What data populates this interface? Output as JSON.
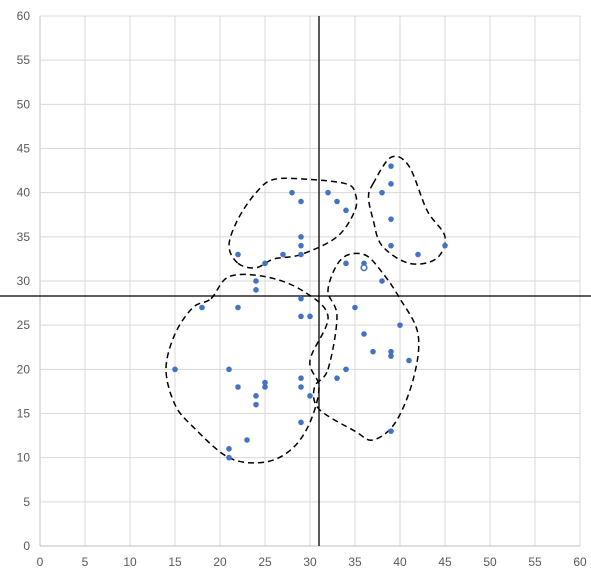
{
  "chart_data": {
    "type": "scatter",
    "title": "",
    "xlabel": "",
    "ylabel": "",
    "xlim": [
      0,
      60
    ],
    "ylim": [
      0,
      60
    ],
    "x_ticks": [
      "0",
      "5",
      "10",
      "15",
      "20",
      "25",
      "30",
      "35",
      "40",
      "45",
      "50",
      "55",
      "60"
    ],
    "y_ticks": [
      "0",
      "5",
      "10",
      "15",
      "20",
      "25",
      "30",
      "35",
      "40",
      "45",
      "50",
      "55",
      "60"
    ],
    "grid": true,
    "legend": "none",
    "marker_color": "#4472c4",
    "series": [
      {
        "points": [
          {
            "x": 15,
            "y": 20
          },
          {
            "x": 18,
            "y": 27
          },
          {
            "x": 21,
            "y": 20
          },
          {
            "x": 21,
            "y": 11
          },
          {
            "x": 21,
            "y": 10
          },
          {
            "x": 22,
            "y": 27
          },
          {
            "x": 22,
            "y": 18
          },
          {
            "x": 22,
            "y": 33
          },
          {
            "x": 23,
            "y": 12
          },
          {
            "x": 24,
            "y": 30
          },
          {
            "x": 24,
            "y": 29
          },
          {
            "x": 24,
            "y": 17
          },
          {
            "x": 24,
            "y": 16
          },
          {
            "x": 25,
            "y": 32
          },
          {
            "x": 25,
            "y": 18.5
          },
          {
            "x": 25,
            "y": 18
          },
          {
            "x": 27,
            "y": 33
          },
          {
            "x": 28,
            "y": 40
          },
          {
            "x": 29,
            "y": 39
          },
          {
            "x": 29,
            "y": 35
          },
          {
            "x": 29,
            "y": 34
          },
          {
            "x": 29,
            "y": 33
          },
          {
            "x": 29,
            "y": 28
          },
          {
            "x": 29,
            "y": 26
          },
          {
            "x": 29,
            "y": 19
          },
          {
            "x": 29,
            "y": 18
          },
          {
            "x": 29,
            "y": 14
          },
          {
            "x": 30,
            "y": 26
          },
          {
            "x": 30,
            "y": 17
          },
          {
            "x": 32,
            "y": 40
          },
          {
            "x": 33,
            "y": 39
          },
          {
            "x": 33,
            "y": 19
          },
          {
            "x": 34,
            "y": 38
          },
          {
            "x": 34,
            "y": 32
          },
          {
            "x": 34,
            "y": 20
          },
          {
            "x": 35,
            "y": 27
          },
          {
            "x": 36,
            "y": 32
          },
          {
            "x": 36,
            "y": 31.5,
            "open": true
          },
          {
            "x": 36,
            "y": 24
          },
          {
            "x": 37,
            "y": 22
          },
          {
            "x": 38,
            "y": 40
          },
          {
            "x": 38,
            "y": 30
          },
          {
            "x": 39,
            "y": 43
          },
          {
            "x": 39,
            "y": 41
          },
          {
            "x": 39,
            "y": 37
          },
          {
            "x": 39,
            "y": 34
          },
          {
            "x": 39,
            "y": 22
          },
          {
            "x": 39,
            "y": 21.5
          },
          {
            "x": 39,
            "y": 13
          },
          {
            "x": 40,
            "y": 25
          },
          {
            "x": 41,
            "y": 21
          },
          {
            "x": 42,
            "y": 33
          },
          {
            "x": 45,
            "y": 34
          }
        ]
      }
    ],
    "reference_lines": [
      {
        "orientation": "vertical",
        "value": 31,
        "color": "#000000"
      },
      {
        "orientation": "horizontal",
        "value": 28.3,
        "color": "#000000"
      }
    ],
    "cluster_outlines": [
      {
        "style": "dashed",
        "color": "#000000",
        "outline": [
          [
            19,
            28
          ],
          [
            21,
            30.5
          ],
          [
            25,
            30.5
          ],
          [
            29,
            29
          ],
          [
            32,
            26
          ],
          [
            30,
            21
          ],
          [
            31,
            18
          ],
          [
            30,
            14
          ],
          [
            28,
            11
          ],
          [
            25,
            9.5
          ],
          [
            21,
            10
          ],
          [
            17,
            13.5
          ],
          [
            15,
            16
          ],
          [
            14,
            20
          ],
          [
            15,
            24
          ],
          [
            17,
            27
          ]
        ]
      },
      {
        "style": "dashed",
        "color": "#000000",
        "outline": [
          [
            22,
            32
          ],
          [
            24,
            31.5
          ],
          [
            26,
            32.5
          ],
          [
            29,
            33
          ],
          [
            33,
            35
          ],
          [
            35,
            38
          ],
          [
            35,
            40
          ],
          [
            34,
            41
          ],
          [
            30,
            41.5
          ],
          [
            26,
            41.5
          ],
          [
            24,
            40
          ],
          [
            22,
            37
          ],
          [
            21,
            34
          ]
        ]
      },
      {
        "style": "dashed",
        "color": "#000000",
        "outline": [
          [
            32,
            20
          ],
          [
            33,
            26
          ],
          [
            32,
            29
          ],
          [
            33.5,
            32.5
          ],
          [
            36,
            33
          ],
          [
            38,
            31
          ],
          [
            40,
            28
          ],
          [
            42,
            24
          ],
          [
            41.5,
            19
          ],
          [
            39.5,
            14
          ],
          [
            37,
            12
          ],
          [
            35,
            13
          ],
          [
            31,
            15.5
          ],
          [
            30.5,
            18
          ]
        ]
      },
      {
        "style": "dashed",
        "color": "#000000",
        "outline": [
          [
            37,
            41
          ],
          [
            39,
            44
          ],
          [
            41,
            43
          ],
          [
            43,
            38
          ],
          [
            45,
            35
          ],
          [
            44,
            32.5
          ],
          [
            41,
            32
          ],
          [
            38,
            34
          ],
          [
            37,
            37
          ],
          [
            36.5,
            39.5
          ]
        ]
      }
    ]
  }
}
